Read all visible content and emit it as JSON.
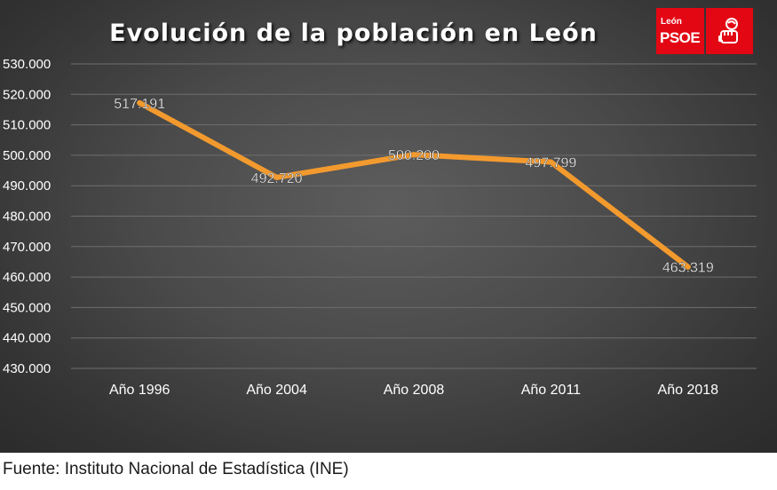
{
  "chart_data": {
    "type": "line",
    "title": "Evolución de la población en León",
    "categories": [
      "Año 1996",
      "Año 2004",
      "Año 2008",
      "Año 2011",
      "Año 2018"
    ],
    "series": [
      {
        "values": [
          517191,
          492720,
          500200,
          497799,
          463319
        ],
        "data_labels": [
          "517.191",
          "492.720",
          "500.200",
          "497.799",
          "463.319"
        ],
        "color": "#f39a2e"
      }
    ],
    "ylim": [
      430000,
      530000
    ],
    "yticks": [
      430000,
      440000,
      450000,
      460000,
      470000,
      480000,
      490000,
      500000,
      510000,
      520000,
      530000
    ],
    "ytick_labels": [
      "430.000",
      "440.000",
      "450.000",
      "460.000",
      "470.000",
      "480.000",
      "490.000",
      "500.000",
      "510.000",
      "520.000",
      "530.000"
    ],
    "grid": true,
    "legend": "none"
  },
  "logo": {
    "city": "León",
    "party": "PSOE",
    "color": "#e30613"
  },
  "source": "Fuente: Instituto Nacional de Estadística (INE)",
  "colors": {
    "background": "#454545",
    "gridline": "#6e6e6e",
    "line": "#f39a2e",
    "text": "#ffffff"
  }
}
